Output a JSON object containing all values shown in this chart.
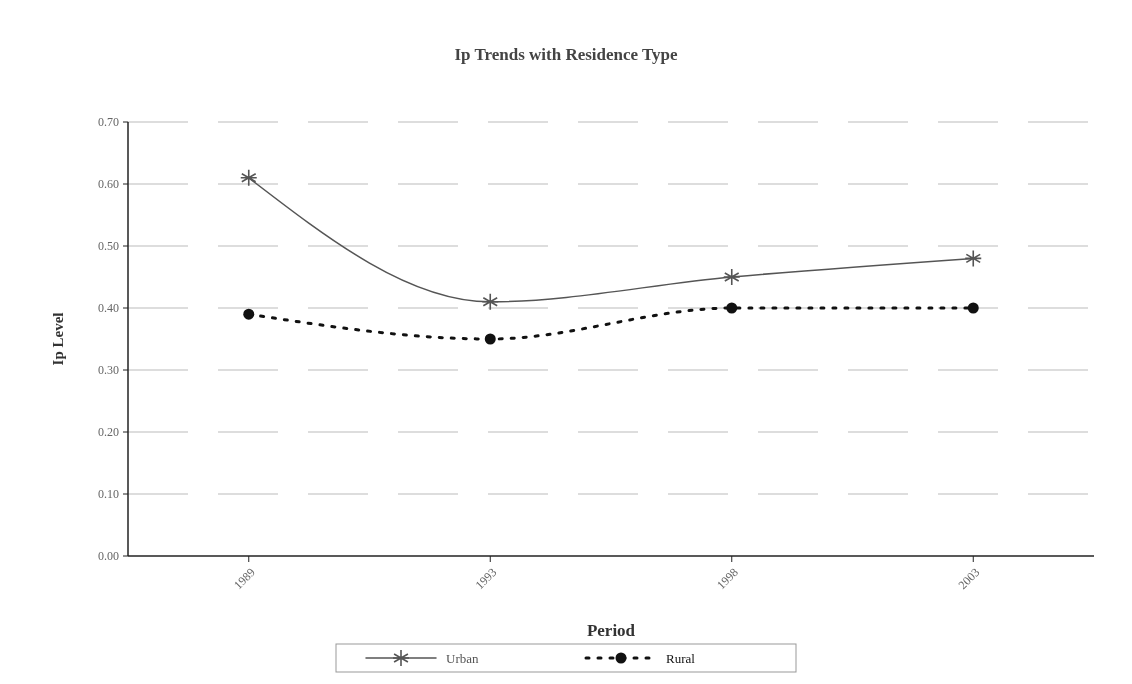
{
  "chart_data": {
    "type": "line",
    "title": "Ip Trends with Residence Type",
    "xlabel": "Period",
    "ylabel": "Ip Level",
    "categories": [
      "1989",
      "1993",
      "1998",
      "2003"
    ],
    "series": [
      {
        "name": "Urban",
        "color": "#555555",
        "values": [
          0.61,
          0.41,
          0.45,
          0.48
        ],
        "marker": "cross",
        "line_style": "solid"
      },
      {
        "name": "Rural",
        "color": "#111111",
        "values": [
          0.39,
          0.35,
          0.4,
          0.4
        ],
        "marker": "circle",
        "line_style": "dotted"
      }
    ],
    "ylim": [
      0,
      0.7
    ],
    "yticks": [
      {
        "value": 0,
        "label": "0.00"
      },
      {
        "value": 0.1,
        "label": "0.10"
      },
      {
        "value": 0.2,
        "label": "0.20"
      },
      {
        "value": 0.3,
        "label": "0.30"
      },
      {
        "value": 0.4,
        "label": "0.40"
      },
      {
        "value": 0.5,
        "label": "0.50"
      },
      {
        "value": 0.6,
        "label": "0.60"
      },
      {
        "value": 0.7,
        "label": "0.70"
      }
    ],
    "grid": "y",
    "legend": "bottom"
  }
}
